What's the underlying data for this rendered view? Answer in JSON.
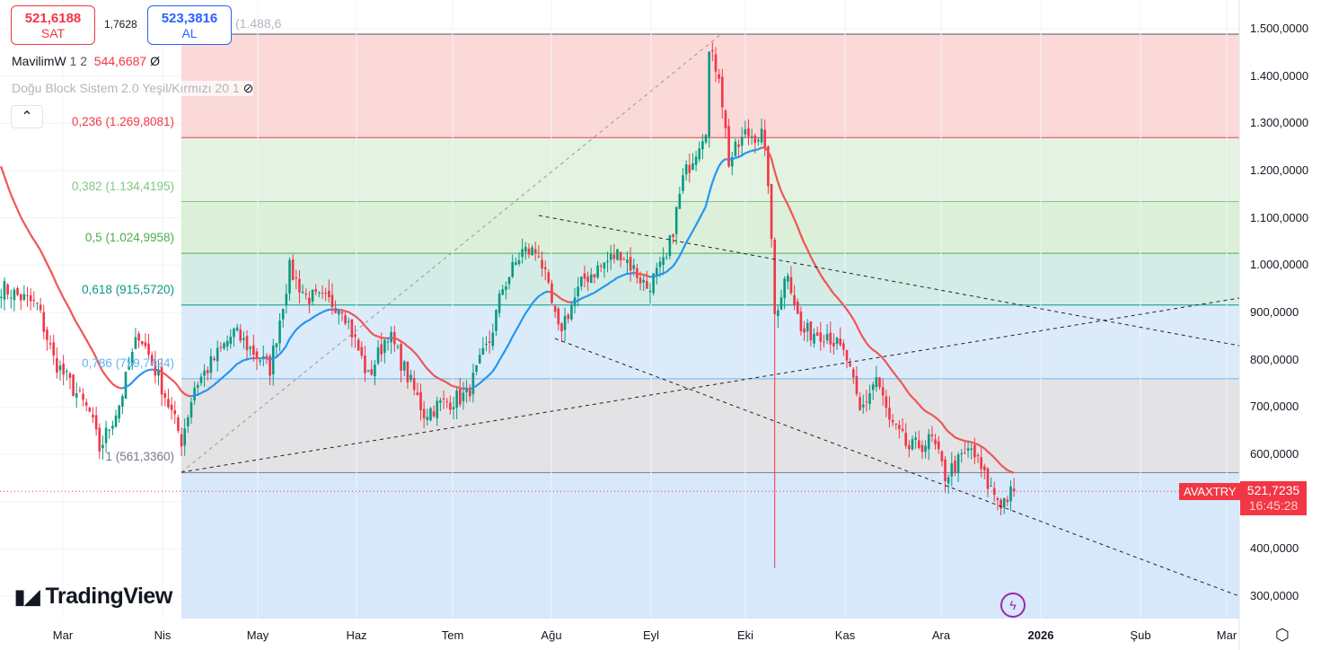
{
  "header": {
    "sell_price": "521,6188",
    "sell_label": "SAT",
    "buy_price": "523,3816",
    "buy_label": "AL",
    "spread": "1,7628",
    "hidden_ohlc": "(1.488,6"
  },
  "indicators": [
    {
      "name": "MavilimW",
      "params": "1 2",
      "value": "544,6687",
      "value_icon": "null-symbol-icon"
    },
    {
      "name": "Doğu Block Sistem 2.0 Yeşil/Kırmızı 20 1",
      "visibility_icon": "eye-off-icon"
    }
  ],
  "symbol": {
    "ticker": "AVAXTRY",
    "last_price": "521,7235",
    "countdown": "16:45:28"
  },
  "brand": "TradingView",
  "colors": {
    "up": "#089981",
    "down": "#f23645",
    "ma_up": "#2196f3",
    "ma_down": "#f05454"
  },
  "chart_data": {
    "type": "candlestick",
    "x_ticks": [
      "Mar",
      "Nis",
      "May",
      "Haz",
      "Tem",
      "Ağu",
      "Eyl",
      "Eki",
      "Kas",
      "Ara",
      "2026",
      "Şub",
      "Mar"
    ],
    "y_ticks": [
      "1.500,0000",
      "1.400,0000",
      "1.300,0000",
      "1.200,0000",
      "1.100,0000",
      "1.000,0000",
      "900,0000",
      "800,0000",
      "700,0000",
      "600,0000",
      "400,0000",
      "300,0000"
    ],
    "ylim": [
      250,
      1540
    ],
    "fib_levels": [
      {
        "ratio": "0",
        "price": 1488.6
      },
      {
        "ratio": "0,236",
        "label": "0,236 (1.269,8081)",
        "price": 1269.8
      },
      {
        "ratio": "0,382",
        "label": "0,382 (1.134,4195)",
        "price": 1134.4
      },
      {
        "ratio": "0,5",
        "label": "0,5 (1.024,9958)",
        "price": 1025.0
      },
      {
        "ratio": "0,618",
        "label": "0,618 (915,5720)",
        "price": 915.6
      },
      {
        "ratio": "0,786",
        "label": "0,786 (759,7424)",
        "price": 759.7
      },
      {
        "ratio": "1",
        "label": "1 (561,3360)",
        "price": 561.3
      }
    ],
    "price_path_day_close": [
      [
        0,
        953
      ],
      [
        11,
        915
      ],
      [
        16,
        801
      ],
      [
        27,
        687
      ],
      [
        30,
        611
      ],
      [
        36,
        706
      ],
      [
        42,
        858
      ],
      [
        48,
        763
      ],
      [
        55,
        630
      ],
      [
        59,
        744
      ],
      [
        71,
        858
      ],
      [
        82,
        782
      ],
      [
        88,
        991
      ],
      [
        93,
        934
      ],
      [
        104,
        915
      ],
      [
        112,
        763
      ],
      [
        118,
        858
      ],
      [
        129,
        687
      ],
      [
        134,
        706
      ],
      [
        142,
        725
      ],
      [
        149,
        839
      ],
      [
        153,
        953
      ],
      [
        159,
        1029
      ],
      [
        164,
        1029
      ],
      [
        170,
        858
      ],
      [
        178,
        972
      ],
      [
        189,
        1029
      ],
      [
        197,
        953
      ],
      [
        203,
        1010
      ],
      [
        208,
        1181
      ],
      [
        215,
        1295
      ],
      [
        216,
        1447
      ],
      [
        219,
        1409
      ],
      [
        222,
        1219
      ],
      [
        227,
        1276
      ],
      [
        232,
        1276
      ],
      [
        234,
        1181
      ],
      [
        236,
        896
      ],
      [
        240,
        991
      ],
      [
        244,
        858
      ],
      [
        252,
        858
      ],
      [
        258,
        801
      ],
      [
        262,
        687
      ],
      [
        267,
        763
      ],
      [
        271,
        668
      ],
      [
        277,
        611
      ],
      [
        284,
        630
      ],
      [
        288,
        555
      ],
      [
        296,
        611
      ],
      [
        301,
        536
      ],
      [
        305,
        498
      ],
      [
        309,
        522
      ]
    ],
    "last_price": 521.7,
    "spike_low": {
      "day": 236,
      "price": 360
    }
  }
}
